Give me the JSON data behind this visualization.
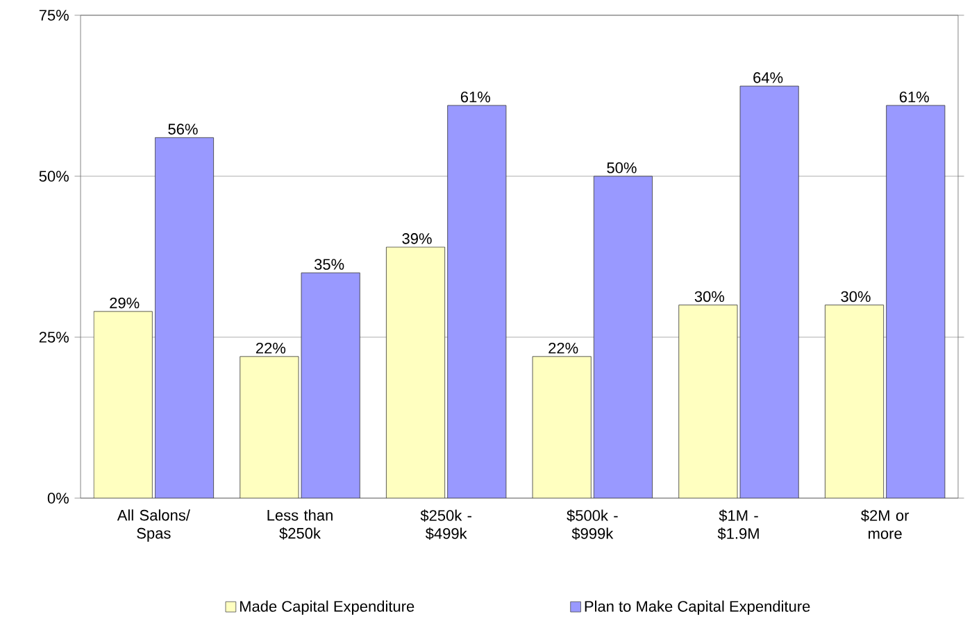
{
  "chart_data": {
    "type": "bar",
    "categories": [
      "All Salons/ Spas",
      "Less than $250k",
      "$250k - $499k",
      "$500k - $999k",
      "$1M - $1.9M",
      "$2M or more"
    ],
    "series": [
      {
        "name": "Made Capital Expenditure",
        "color": "#ffffc0",
        "values": [
          29,
          22,
          39,
          22,
          30,
          30
        ],
        "value_labels": [
          "29%",
          "22%",
          "39%",
          "22%",
          "30%",
          "30%"
        ]
      },
      {
        "name": "Plan to Make Capital Expenditure",
        "color": "#9999ff",
        "values": [
          56,
          35,
          61,
          50,
          64,
          61
        ],
        "value_labels": [
          "56%",
          "35%",
          "61%",
          "50%",
          "64%",
          "61%"
        ]
      }
    ],
    "ylim": [
      0,
      75
    ],
    "yticks": [
      {
        "value": 0,
        "label": "0%"
      },
      {
        "value": 25,
        "label": "25%"
      },
      {
        "value": 50,
        "label": "50%"
      },
      {
        "value": 75,
        "label": "75%"
      }
    ],
    "grid": "y",
    "legend": "bottom"
  }
}
